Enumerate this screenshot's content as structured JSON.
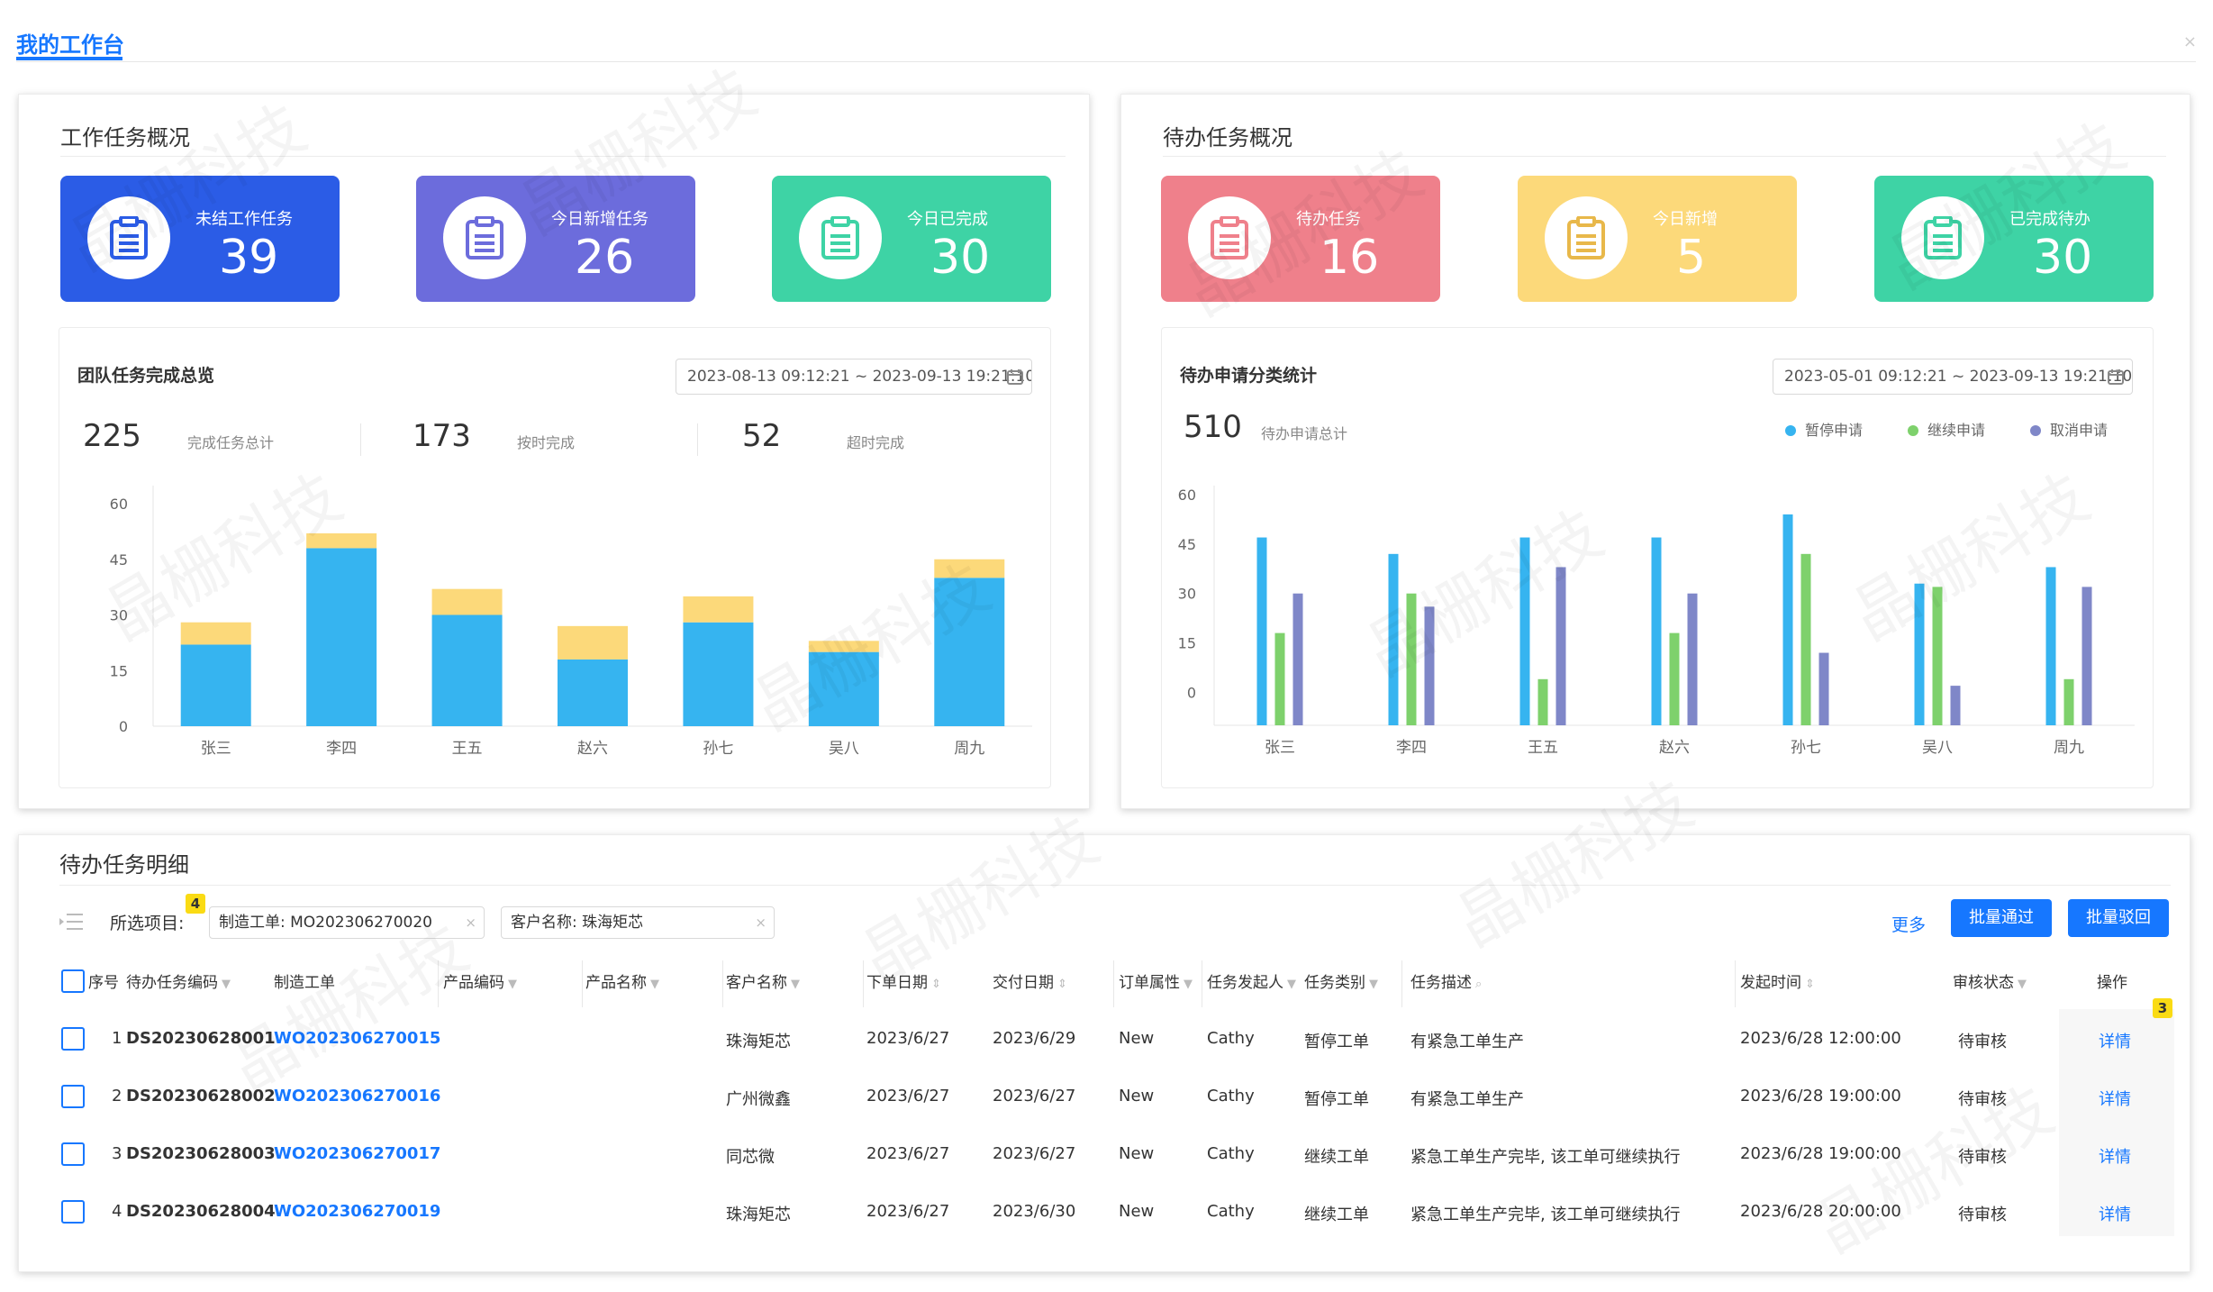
{
  "tab": {
    "title": "我的工作台"
  },
  "work_overview": {
    "title": "工作任务概况",
    "cards": [
      {
        "label": "未结工作任务",
        "value": "39",
        "color": "#2b5ce6"
      },
      {
        "label": "今日新增任务",
        "value": "26",
        "color": "#6c6cdc"
      },
      {
        "label": "今日已完成",
        "value": "30",
        "color": "#3ed3a5"
      }
    ],
    "team": {
      "title": "团队任务完成总览",
      "date_range": "2023-08-13 09:12:21 ~ 2023-09-13 19:21:10",
      "summary": [
        {
          "value": "225",
          "label": "完成任务总计"
        },
        {
          "value": "173",
          "label": "按时完成"
        },
        {
          "value": "52",
          "label": "超时完成"
        }
      ]
    }
  },
  "pending_overview": {
    "title": "待办任务概况",
    "cards": [
      {
        "label": "待办任务",
        "value": "16",
        "color": "#ef808b"
      },
      {
        "label": "今日新增",
        "value": "5",
        "color": "#fcd97a"
      },
      {
        "label": "已完成待办",
        "value": "30",
        "color": "#3ed3a5"
      }
    ],
    "stats": {
      "title": "待办申请分类统计",
      "date_range": "2023-05-01 09:12:21 ~ 2023-09-13 19:21:10",
      "total": "510",
      "total_label": "待办申请总计"
    }
  },
  "chart_data": [
    {
      "type": "bar",
      "stacked": true,
      "categories": [
        "张三",
        "李四",
        "王五",
        "赵六",
        "孙七",
        "吴八",
        "周九"
      ],
      "series": [
        {
          "values": [
            22,
            48,
            30,
            18,
            28,
            20,
            40
          ],
          "color": "#36b4f0"
        },
        {
          "values": [
            6,
            4,
            7,
            9,
            7,
            3,
            5
          ],
          "color": "#fcd97a"
        }
      ],
      "yticks": [
        0,
        15,
        30,
        45,
        60
      ],
      "ylim": [
        0,
        60
      ],
      "grid": false,
      "legend": "none"
    },
    {
      "type": "bar",
      "categories": [
        "张三",
        "李四",
        "王五",
        "赵六",
        "孙七",
        "吴八",
        "周九"
      ],
      "series": [
        {
          "name": "暂停申请",
          "values": [
            47,
            42,
            47,
            47,
            54,
            33,
            38
          ],
          "color": "#36b4f0"
        },
        {
          "name": "继续申请",
          "values": [
            18,
            30,
            4,
            18,
            42,
            32,
            4
          ],
          "color": "#7ed16c"
        },
        {
          "name": "取消申请",
          "values": [
            30,
            26,
            38,
            30,
            12,
            2,
            32
          ],
          "color": "#7f87c8"
        }
      ],
      "yticks": [
        0,
        15,
        30,
        45,
        60
      ],
      "ylim": [
        -10,
        60
      ],
      "grid": false,
      "legend": "top-right"
    }
  ],
  "detail": {
    "title": "待办任务明细",
    "filter": {
      "label": "所选项目:",
      "badge": "4",
      "tags": [
        "制造工单: MO202306270020",
        "客户名称: 珠海矩芯"
      ],
      "more": "更多",
      "approve": "批量通过",
      "reject": "批量驳回"
    },
    "op_badge": "3",
    "columns": [
      "序号",
      "待办任务编码",
      "制造工单",
      "产品编码",
      "产品名称",
      "客户名称",
      "下单日期",
      "交付日期",
      "订单属性",
      "任务发起人",
      "任务类别",
      "任务描述",
      "发起时间",
      "审核状态",
      "操作"
    ],
    "rows": [
      {
        "idx": "1",
        "code": "DS20230628001",
        "order": "WO202306270015",
        "customer": "珠海矩芯",
        "order_date": "2023/6/27",
        "delivery": "2023/6/29",
        "attr": "New",
        "initiator": "Cathy",
        "category": "暂停工单",
        "desc": "有紧急工单生产",
        "time": "2023/6/28 12:00:00",
        "status": "待审核",
        "op": "详情"
      },
      {
        "idx": "2",
        "code": "DS20230628002",
        "order": "WO202306270016",
        "customer": "广州微鑫",
        "order_date": "2023/6/27",
        "delivery": "2023/6/27",
        "attr": "New",
        "initiator": "Cathy",
        "category": "暂停工单",
        "desc": "有紧急工单生产",
        "time": "2023/6/28 19:00:00",
        "status": "待审核",
        "op": "详情"
      },
      {
        "idx": "3",
        "code": "DS20230628003",
        "order": "WO202306270017",
        "customer": "同芯微",
        "order_date": "2023/6/27",
        "delivery": "2023/6/27",
        "attr": "New",
        "initiator": "Cathy",
        "category": "继续工单",
        "desc": "紧急工单生产完毕, 该工单可继续执行",
        "time": "2023/6/28 19:00:00",
        "status": "待审核",
        "op": "详情"
      },
      {
        "idx": "4",
        "code": "DS20230628004",
        "order": "WO202306270019",
        "customer": "珠海矩芯",
        "order_date": "2023/6/27",
        "delivery": "2023/6/30",
        "attr": "New",
        "initiator": "Cathy",
        "category": "继续工单",
        "desc": "紧急工单生产完毕, 该工单可继续执行",
        "time": "2023/6/28 20:00:00",
        "status": "待审核",
        "op": "详情"
      }
    ]
  },
  "watermark": "晶栅科技"
}
